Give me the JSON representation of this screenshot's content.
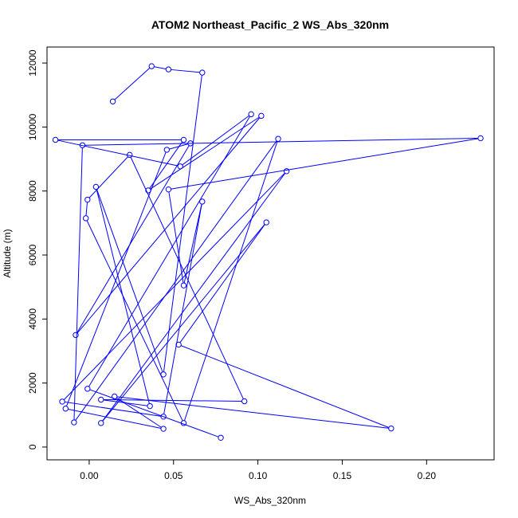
{
  "chart_data": {
    "type": "line",
    "title": "ATOM2 Northeast_Pacific_2 WS_Abs_320nm",
    "xlabel": "WS_Abs_320nm",
    "ylabel": "Altitude (m)",
    "xlim": [
      -0.025,
      0.24
    ],
    "ylim": [
      -400,
      12500
    ],
    "xticks": [
      0.0,
      0.05,
      0.1,
      0.15,
      0.2
    ],
    "xtick_labels": [
      "0.00",
      "0.05",
      "0.10",
      "0.15",
      "0.20"
    ],
    "yticks": [
      0,
      2000,
      4000,
      6000,
      8000,
      10000,
      12000
    ],
    "ytick_labels": [
      "0",
      "2000",
      "4000",
      "6000",
      "8000",
      "10000",
      "12000"
    ],
    "grid": false,
    "legend": "none",
    "series": [
      {
        "color": "#0000ff",
        "marker": "open-circle",
        "points": [
          {
            "x": 0.014,
            "y": 10800
          },
          {
            "x": 0.037,
            "y": 11900
          },
          {
            "x": 0.047,
            "y": 11800
          },
          {
            "x": 0.067,
            "y": 11700
          },
          {
            "x": 0.044,
            "y": 2270
          },
          {
            "x": 0.004,
            "y": 8130
          },
          {
            "x": 0.036,
            "y": 1280
          },
          {
            "x": 0.007,
            "y": 1480
          },
          {
            "x": 0.092,
            "y": 1430
          },
          {
            "x": 0.024,
            "y": 9130
          },
          {
            "x": -0.001,
            "y": 7730
          },
          {
            "x": -0.002,
            "y": 7150
          },
          {
            "x": 0.056,
            "y": 750
          },
          {
            "x": 0.112,
            "y": 9630
          },
          {
            "x": -0.009,
            "y": 770
          },
          {
            "x": -0.004,
            "y": 9430
          },
          {
            "x": 0.232,
            "y": 9650
          },
          {
            "x": 0.047,
            "y": 8050
          },
          {
            "x": 0.056,
            "y": 5050
          },
          {
            "x": 0.067,
            "y": 7670
          },
          {
            "x": 0.044,
            "y": 950
          },
          {
            "x": -0.016,
            "y": 1420
          },
          {
            "x": 0.117,
            "y": 8620
          },
          {
            "x": 0.007,
            "y": 750
          },
          {
            "x": 0.105,
            "y": 7020
          },
          {
            "x": 0.053,
            "y": 3200
          },
          {
            "x": 0.179,
            "y": 580
          },
          {
            "x": 0.015,
            "y": 1580
          },
          {
            "x": 0.044,
            "y": 570
          },
          {
            "x": -0.014,
            "y": 1200
          },
          {
            "x": 0.046,
            "y": 9290
          },
          {
            "x": 0.06,
            "y": 9490
          },
          {
            "x": -0.008,
            "y": 3500
          },
          {
            "x": 0.102,
            "y": 10350
          },
          {
            "x": 0.035,
            "y": 8020
          },
          {
            "x": 0.056,
            "y": 9600
          },
          {
            "x": -0.02,
            "y": 9600
          },
          {
            "x": 0.054,
            "y": 8770
          },
          {
            "x": 0.096,
            "y": 10400
          },
          {
            "x": -0.001,
            "y": 1820
          },
          {
            "x": 0.078,
            "y": 290
          }
        ]
      }
    ]
  }
}
